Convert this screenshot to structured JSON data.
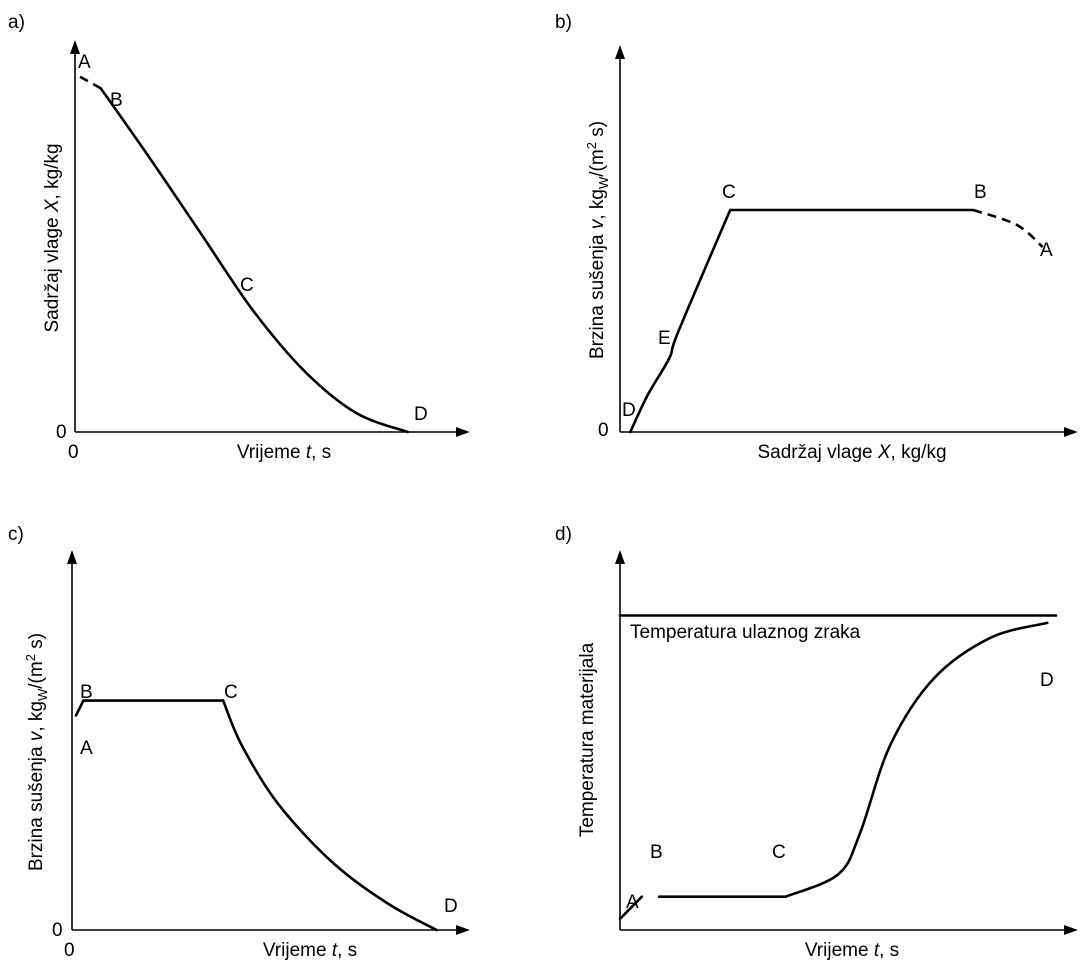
{
  "chart_data": [
    {
      "panel": "a)",
      "type": "line",
      "xlabel": "Vrijeme ",
      "xlabel_var": "t",
      "xlabel_unit": ", s",
      "ylabel": "Sadržaj vlage ",
      "ylabel_var": "X",
      "ylabel_unit": ", kg/kg",
      "x_origin_label": "0",
      "y_origin_label": "0",
      "point_labels": [
        "A",
        "B",
        "C",
        "D"
      ],
      "series": [
        {
          "segment": "A-B",
          "style": "dashed",
          "x": [
            0.0,
            0.06
          ],
          "y": [
            0.93,
            0.9
          ]
        },
        {
          "segment": "B-D",
          "style": "solid",
          "x": [
            0.06,
            0.2,
            0.35,
            0.5,
            0.65,
            0.8,
            0.95
          ],
          "y": [
            0.9,
            0.72,
            0.52,
            0.32,
            0.16,
            0.05,
            0.0
          ]
        }
      ]
    },
    {
      "panel": "b)",
      "type": "line",
      "xlabel": "Sadržaj vlage ",
      "xlabel_var": "X",
      "xlabel_unit": ", kg/kg",
      "ylabel": "Brzina sušenja ",
      "ylabel_var": "v",
      "ylabel_unit_pre": ", kg",
      "ylabel_unit_sub": "W",
      "ylabel_unit_mid": "/(m",
      "ylabel_unit_sup": "2",
      "ylabel_unit_post": " s)",
      "y_origin_label": "0",
      "point_labels": [
        "A",
        "B",
        "C",
        "D",
        "E"
      ],
      "series": [
        {
          "segment": "D-C",
          "style": "solid",
          "x": [
            0.01,
            0.05,
            0.1,
            0.12,
            0.24
          ],
          "y": [
            0.0,
            0.1,
            0.2,
            0.27,
            0.6
          ]
        },
        {
          "segment": "C-B",
          "style": "solid",
          "x": [
            0.24,
            0.8
          ],
          "y": [
            0.6,
            0.6
          ]
        },
        {
          "segment": "B-A",
          "style": "dashed",
          "x": [
            0.8,
            0.9,
            0.96
          ],
          "y": [
            0.6,
            0.56,
            0.5
          ]
        }
      ]
    },
    {
      "panel": "c)",
      "type": "line",
      "xlabel": "Vrijeme ",
      "xlabel_var": "t",
      "xlabel_unit": ", s",
      "ylabel": "Brzina sušenja ",
      "ylabel_var": "v",
      "ylabel_unit_pre": ", kg",
      "ylabel_unit_sub": "W",
      "ylabel_unit_mid": "/(m",
      "ylabel_unit_sup": "2",
      "ylabel_unit_post": " s)",
      "x_origin_label": "0",
      "y_origin_label": "0",
      "point_labels": [
        "A",
        "B",
        "C",
        "D"
      ],
      "series": [
        {
          "segment": "A-B",
          "style": "solid",
          "x": [
            0.0,
            0.02
          ],
          "y": [
            0.58,
            0.62
          ]
        },
        {
          "segment": "B-C",
          "style": "solid",
          "x": [
            0.02,
            0.4
          ],
          "y": [
            0.62,
            0.62
          ]
        },
        {
          "segment": "C-D",
          "style": "solid",
          "x": [
            0.4,
            0.45,
            0.55,
            0.7,
            0.85,
            0.98
          ],
          "y": [
            0.62,
            0.5,
            0.34,
            0.18,
            0.07,
            0.0
          ]
        }
      ]
    },
    {
      "panel": "d)",
      "type": "line",
      "xlabel": "Vrijeme ",
      "xlabel_var": "t",
      "xlabel_unit": ", s",
      "ylabel": "Temperatura materijala",
      "annotation": "Temperatura ulaznog zraka",
      "point_labels": [
        "A",
        "B",
        "C",
        "D"
      ],
      "series": [
        {
          "segment": "ulazni zrak",
          "style": "solid",
          "x": [
            0.0,
            1.0
          ],
          "y": [
            0.85,
            0.85
          ]
        },
        {
          "segment": "A-B",
          "style": "solid",
          "x": [
            0.0,
            0.05
          ],
          "y": [
            0.03,
            0.09
          ]
        },
        {
          "segment": "B-C",
          "style": "solid",
          "x": [
            0.09,
            0.38
          ],
          "y": [
            0.09,
            0.09
          ]
        },
        {
          "segment": "C-D",
          "style": "solid",
          "x": [
            0.38,
            0.5,
            0.55,
            0.62,
            0.72,
            0.85,
            0.98
          ],
          "y": [
            0.09,
            0.15,
            0.26,
            0.5,
            0.68,
            0.79,
            0.83
          ]
        }
      ]
    }
  ]
}
